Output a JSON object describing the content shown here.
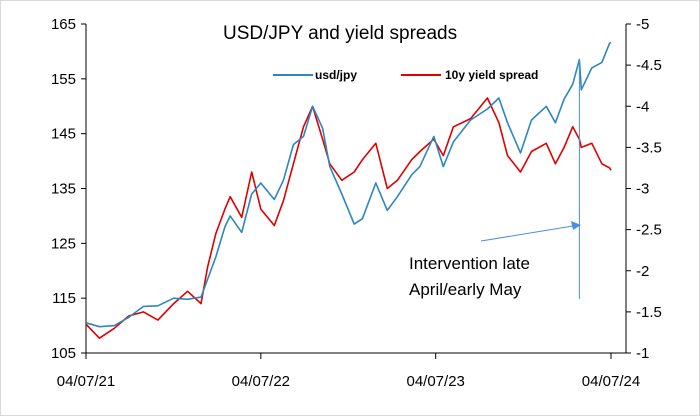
{
  "chart_data": {
    "type": "line",
    "title": "USD/JPY and yield spreads",
    "x_ticks": [
      "04/07/21",
      "04/07/22",
      "04/07/23",
      "04/07/24"
    ],
    "y_left": {
      "range": [
        105,
        165
      ],
      "ticks": [
        "105",
        "115",
        "125",
        "135",
        "145",
        "155",
        "165"
      ]
    },
    "y_right": {
      "range": [
        -1,
        -5
      ],
      "ticks": [
        "-1",
        "-1.5",
        "-2",
        "-2.5",
        "-3",
        "-3.5",
        "-4",
        "-4.5",
        "-5"
      ]
    },
    "series": [
      {
        "name": "usd/jpy",
        "axis": "left",
        "color": "#2e86c1",
        "points": [
          [
            "2021-07-04",
            110.5
          ],
          [
            "2021-08-01",
            109.8
          ],
          [
            "2021-09-01",
            110.0
          ],
          [
            "2021-10-01",
            111.5
          ],
          [
            "2021-11-01",
            113.5
          ],
          [
            "2021-12-01",
            113.6
          ],
          [
            "2022-01-03",
            115.0
          ],
          [
            "2022-02-01",
            114.8
          ],
          [
            "2022-03-01",
            115.2
          ],
          [
            "2022-03-15",
            118.5
          ],
          [
            "2022-04-01",
            122.5
          ],
          [
            "2022-04-20",
            128.0
          ],
          [
            "2022-05-01",
            130.0
          ],
          [
            "2022-05-25",
            127.0
          ],
          [
            "2022-06-15",
            134.0
          ],
          [
            "2022-07-04",
            136.0
          ],
          [
            "2022-08-01",
            133.0
          ],
          [
            "2022-08-20",
            136.5
          ],
          [
            "2022-09-10",
            143.0
          ],
          [
            "2022-10-01",
            144.5
          ],
          [
            "2022-10-20",
            150.0
          ],
          [
            "2022-11-10",
            146.0
          ],
          [
            "2022-11-25",
            139.0
          ],
          [
            "2022-12-20",
            134.0
          ],
          [
            "2023-01-15",
            128.5
          ],
          [
            "2023-02-01",
            129.5
          ],
          [
            "2023-03-01",
            136.0
          ],
          [
            "2023-03-25",
            131.0
          ],
          [
            "2023-04-15",
            133.5
          ],
          [
            "2023-05-15",
            137.5
          ],
          [
            "2023-06-01",
            139.0
          ],
          [
            "2023-06-30",
            144.5
          ],
          [
            "2023-07-20",
            139.0
          ],
          [
            "2023-08-10",
            143.5
          ],
          [
            "2023-09-15",
            147.5
          ],
          [
            "2023-10-20",
            149.5
          ],
          [
            "2023-11-13",
            151.5
          ],
          [
            "2023-12-01",
            147.0
          ],
          [
            "2023-12-28",
            141.5
          ],
          [
            "2024-01-20",
            147.5
          ],
          [
            "2024-02-20",
            150.0
          ],
          [
            "2024-03-10",
            147.0
          ],
          [
            "2024-03-28",
            151.3
          ],
          [
            "2024-04-15",
            154.0
          ],
          [
            "2024-04-29",
            158.5
          ],
          [
            "2024-05-03",
            153.0
          ],
          [
            "2024-05-25",
            157.0
          ],
          [
            "2024-06-15",
            158.0
          ],
          [
            "2024-07-01",
            161.5
          ],
          [
            "2024-07-04",
            161.6
          ]
        ]
      },
      {
        "name": "10y yield spread",
        "axis": "right",
        "color": "#e00000",
        "points": [
          [
            "2021-07-04",
            -1.35
          ],
          [
            "2021-08-01",
            -1.18
          ],
          [
            "2021-09-01",
            -1.3
          ],
          [
            "2021-10-01",
            -1.45
          ],
          [
            "2021-11-01",
            -1.5
          ],
          [
            "2021-12-01",
            -1.4
          ],
          [
            "2022-01-03",
            -1.6
          ],
          [
            "2022-02-01",
            -1.75
          ],
          [
            "2022-03-01",
            -1.6
          ],
          [
            "2022-03-15",
            -2.05
          ],
          [
            "2022-04-01",
            -2.45
          ],
          [
            "2022-04-20",
            -2.75
          ],
          [
            "2022-05-01",
            -2.9
          ],
          [
            "2022-05-25",
            -2.65
          ],
          [
            "2022-06-15",
            -3.2
          ],
          [
            "2022-07-04",
            -2.75
          ],
          [
            "2022-08-01",
            -2.55
          ],
          [
            "2022-08-20",
            -2.85
          ],
          [
            "2022-09-10",
            -3.3
          ],
          [
            "2022-10-01",
            -3.75
          ],
          [
            "2022-10-20",
            -4.0
          ],
          [
            "2022-11-10",
            -3.6
          ],
          [
            "2022-11-25",
            -3.3
          ],
          [
            "2022-12-20",
            -3.1
          ],
          [
            "2023-01-15",
            -3.2
          ],
          [
            "2023-02-01",
            -3.35
          ],
          [
            "2023-03-01",
            -3.55
          ],
          [
            "2023-03-25",
            -3.0
          ],
          [
            "2023-04-15",
            -3.1
          ],
          [
            "2023-05-15",
            -3.35
          ],
          [
            "2023-06-01",
            -3.45
          ],
          [
            "2023-06-30",
            -3.6
          ],
          [
            "2023-07-20",
            -3.4
          ],
          [
            "2023-08-10",
            -3.75
          ],
          [
            "2023-09-15",
            -3.85
          ],
          [
            "2023-10-20",
            -4.1
          ],
          [
            "2023-11-13",
            -3.8
          ],
          [
            "2023-12-01",
            -3.4
          ],
          [
            "2023-12-28",
            -3.2
          ],
          [
            "2024-01-20",
            -3.45
          ],
          [
            "2024-02-20",
            -3.55
          ],
          [
            "2024-03-10",
            -3.3
          ],
          [
            "2024-03-28",
            -3.5
          ],
          [
            "2024-04-15",
            -3.75
          ],
          [
            "2024-04-29",
            -3.6
          ],
          [
            "2024-05-03",
            -3.5
          ],
          [
            "2024-05-25",
            -3.55
          ],
          [
            "2024-06-15",
            -3.3
          ],
          [
            "2024-07-01",
            -3.25
          ],
          [
            "2024-07-04",
            -3.22
          ]
        ]
      }
    ],
    "legend": {
      "placement": "top-center"
    },
    "grid": false,
    "annotation": {
      "lines": [
        "Intervention late",
        "April/early May"
      ],
      "color": "#4a90d9",
      "target_date": "2024-04-29"
    }
  }
}
